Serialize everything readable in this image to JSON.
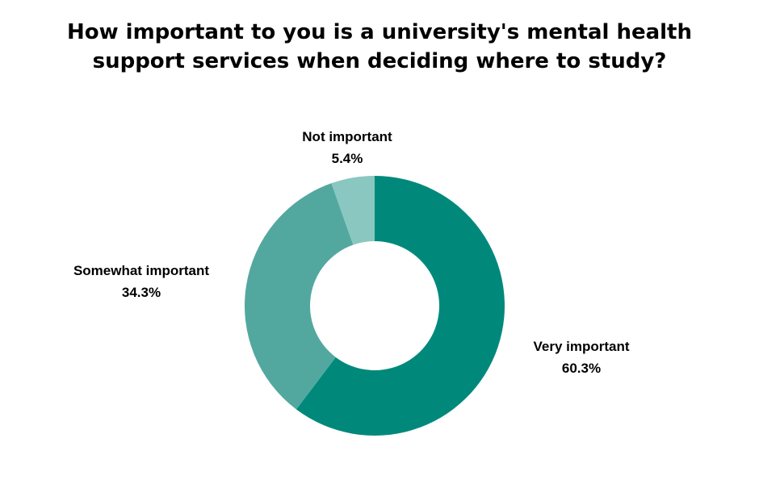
{
  "title": {
    "line1": "How important to you is a university's mental health",
    "line2": "support services when deciding where to study?"
  },
  "chart_data": {
    "type": "pie",
    "variant": "donut",
    "title": "How important to you is a university's mental health support services when deciding where to study?",
    "slices": [
      {
        "label": "Very important",
        "value": 60.3,
        "display": "60.3%",
        "color": "#00897B"
      },
      {
        "label": "Somewhat important",
        "value": 34.3,
        "display": "34.3%",
        "color": "#52A89F"
      },
      {
        "label": "Not important",
        "value": 5.4,
        "display": "5.4%",
        "color": "#89C7C0"
      }
    ],
    "start_angle": "12 o'clock",
    "direction": "clockwise",
    "legend": "none",
    "labels": "outside slices"
  }
}
